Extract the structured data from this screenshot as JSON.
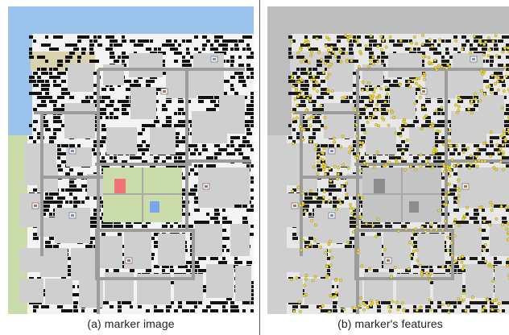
{
  "captions": {
    "a": "(a)  marker image",
    "b": "(b) marker's features"
  },
  "colors": {
    "water": "#9cc3ec",
    "park": "#c9dcaa",
    "sand": "#dcd2ad",
    "building": "#cfcfcf",
    "road": "#9c9c9c",
    "feature": "#f2dd33",
    "red_marker": "#f0737a",
    "blue_marker": "#7ca4ec"
  }
}
